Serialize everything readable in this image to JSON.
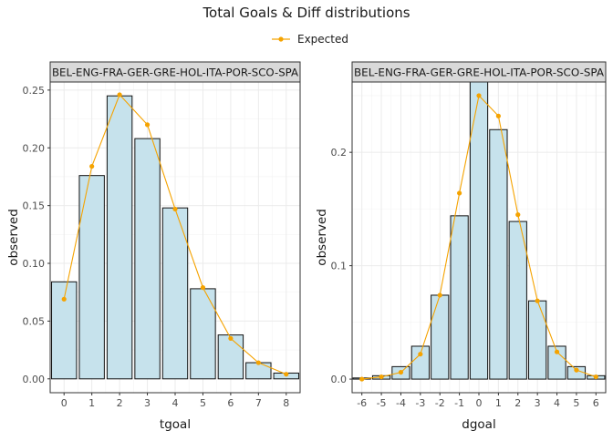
{
  "title": "Total Goals & Diff distributions",
  "legend": {
    "label": "Expected",
    "placement": "top"
  },
  "colors": {
    "bar_fill": "#c6e2ec",
    "bar_stroke": "#111111",
    "expected": "#f5a300",
    "strip_fill": "#d9d9d9",
    "grid": "#ebebeb",
    "panel_border": "#333333"
  },
  "chart_data": [
    {
      "type": "bar",
      "strip_label": "BEL-ENG-FRA-GER-GRE-HOL-ITA-POR-SCO-SPA",
      "xlabel": "tgoal",
      "ylabel": "observed",
      "categories": [
        "0",
        "1",
        "2",
        "3",
        "4",
        "5",
        "6",
        "7",
        "8"
      ],
      "x": [
        0,
        1,
        2,
        3,
        4,
        5,
        6,
        7,
        8
      ],
      "xlim": [
        -0.5,
        8.5
      ],
      "ylim": [
        -0.012,
        0.257
      ],
      "yticks": [
        0.0,
        0.05,
        0.1,
        0.15,
        0.2,
        0.25
      ],
      "ytick_labels": [
        "0.00",
        "0.05",
        "0.10",
        "0.15",
        "0.20",
        "0.25"
      ],
      "series": [
        {
          "values": [
            0.084,
            0.176,
            0.245,
            0.208,
            0.148,
            0.078,
            0.038,
            0.014,
            0.005
          ]
        },
        {
          "name": "Expected",
          "values": [
            0.069,
            0.184,
            0.246,
            0.22,
            0.147,
            0.079,
            0.035,
            0.014,
            0.004
          ]
        }
      ],
      "grid": true
    },
    {
      "type": "bar",
      "strip_label": "BEL-ENG-FRA-GER-GRE-HOL-ITA-POR-SCO-SPA",
      "xlabel": "dgoal",
      "ylabel": "observed",
      "categories": [
        "-6",
        "-5",
        "-4",
        "-3",
        "-2",
        "-1",
        "0",
        "1",
        "2",
        "3",
        "4",
        "5",
        "6"
      ],
      "x": [
        -6,
        -5,
        -4,
        -3,
        -2,
        -1,
        0,
        1,
        2,
        3,
        4,
        5,
        6
      ],
      "xlim": [
        -6.5,
        6.5
      ],
      "ylim": [
        -0.012,
        0.262
      ],
      "yticks": [
        0.0,
        0.1,
        0.2
      ],
      "ytick_labels": [
        "0.0",
        "0.1",
        "0.2"
      ],
      "series": [
        {
          "values": [
            0.001,
            0.003,
            0.011,
            0.029,
            0.074,
            0.144,
            0.262,
            0.22,
            0.139,
            0.069,
            0.029,
            0.011,
            0.003
          ]
        },
        {
          "name": "Expected",
          "values": [
            0.0,
            0.002,
            0.006,
            0.022,
            0.074,
            0.164,
            0.25,
            0.232,
            0.145,
            0.069,
            0.024,
            0.008,
            0.002
          ]
        }
      ],
      "grid": true
    }
  ]
}
